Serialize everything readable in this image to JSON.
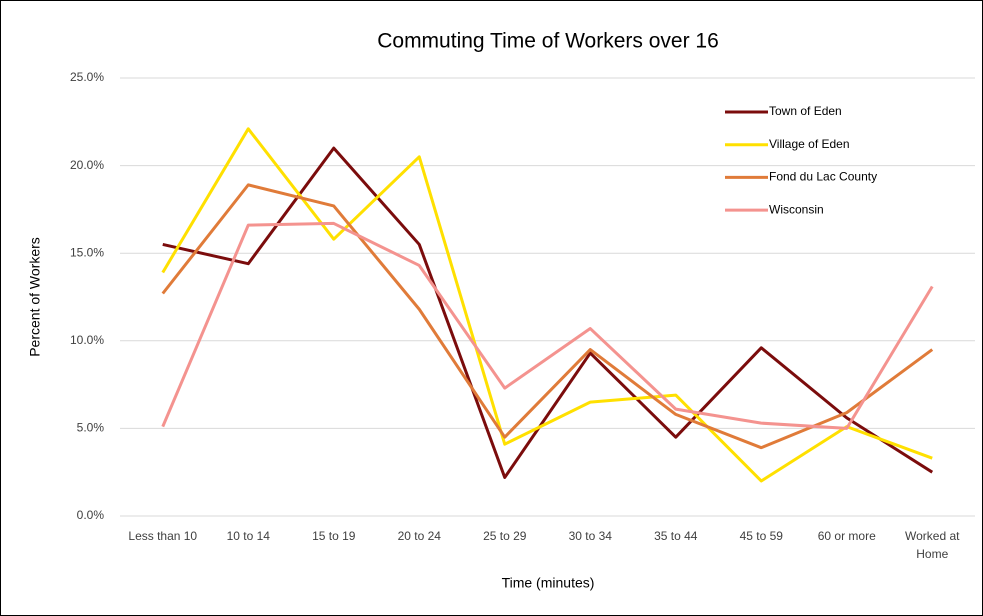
{
  "chart_data": {
    "type": "line",
    "title": "Commuting Time of Workers over 16",
    "xlabel": "Time (minutes)",
    "ylabel": "Percent of Workers",
    "categories": [
      "Less than 10",
      "10 to 14",
      "15 to 19",
      "20 to 24",
      "25 to 29",
      "30 to 34",
      "35 to 44",
      "45 to 59",
      "60 or more",
      "Worked at Home"
    ],
    "series": [
      {
        "name": "Town of Eden",
        "color": "#7b0c0c",
        "values": [
          15.5,
          14.4,
          21.0,
          15.5,
          2.2,
          9.3,
          4.5,
          9.6,
          5.6,
          2.5
        ]
      },
      {
        "name": "Village of Eden",
        "color": "#ffe000",
        "values": [
          13.9,
          22.1,
          15.8,
          20.5,
          4.1,
          6.5,
          6.9,
          2.0,
          5.1,
          3.3
        ]
      },
      {
        "name": "Fond du Lac County",
        "color": "#e07b39",
        "values": [
          12.7,
          18.9,
          17.7,
          11.8,
          4.5,
          9.5,
          5.8,
          3.9,
          5.9,
          9.5
        ]
      },
      {
        "name": "Wisconsin",
        "color": "#f4938f",
        "values": [
          5.1,
          16.6,
          16.7,
          14.3,
          7.3,
          10.7,
          6.1,
          5.3,
          5.0,
          13.1
        ]
      }
    ],
    "ylim": [
      0,
      25
    ],
    "yticks": [
      {
        "value": 0,
        "label": "0.0%"
      },
      {
        "value": 5,
        "label": "5.0%"
      },
      {
        "value": 10,
        "label": "10.0%"
      },
      {
        "value": 15,
        "label": "15.0%"
      },
      {
        "value": 20,
        "label": "20.0%"
      },
      {
        "value": 25,
        "label": "25.0%"
      }
    ],
    "grid": true,
    "legend": "upper right"
  }
}
